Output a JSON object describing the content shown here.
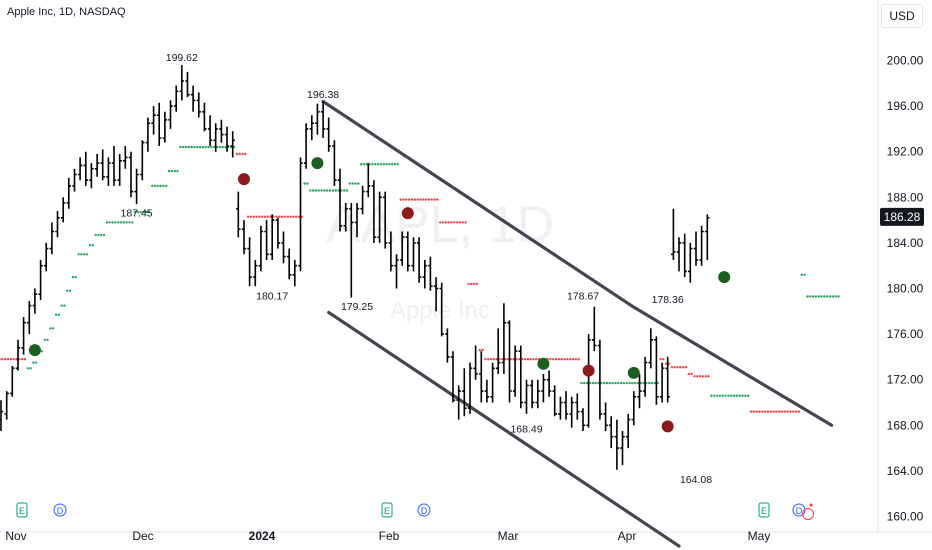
{
  "header": {
    "title": "Apple Inc, 1D, NASDAQ",
    "currency": "USD"
  },
  "watermark": {
    "ticker": "AAPL, 1D",
    "name": "Apple Inc"
  },
  "colors": {
    "bars": "#000000",
    "channel": "#434651",
    "stop_green": "#26a65b",
    "stop_red": "#ef4444",
    "signal_green": "#1b5e20",
    "signal_red": "#8b1a1a",
    "event_green": "#089981",
    "event_blue": "#2962ff"
  },
  "chart_data": {
    "type": "ohlc",
    "title": "Apple Inc, 1D, NASDAQ",
    "ylim": [
      160,
      201
    ],
    "y_ticks": [
      "200.00",
      "196.00",
      "192.00",
      "188.00",
      "184.00",
      "180.00",
      "176.00",
      "172.00",
      "168.00",
      "164.00",
      "160.00"
    ],
    "x_labels": [
      "Nov",
      "Dec",
      "2024",
      "Feb",
      "Mar",
      "Apr",
      "May"
    ],
    "last_price": "186.28",
    "price_annotations": [
      {
        "text": "199.62"
      },
      {
        "text": "196.38"
      },
      {
        "text": "187.45"
      },
      {
        "text": "180.17"
      },
      {
        "text": "179.25"
      },
      {
        "text": "178.67"
      },
      {
        "text": "178.36"
      },
      {
        "text": "168.49"
      },
      {
        "text": "164.08"
      }
    ],
    "events": [
      "E",
      "D",
      "E",
      "D",
      "E",
      "D"
    ],
    "bars": [
      [
        168.5,
        170.2,
        167.5,
        169.2
      ],
      [
        169.0,
        171.0,
        168.5,
        170.8
      ],
      [
        170.8,
        173.2,
        170.5,
        173.0
      ],
      [
        173.0,
        175.5,
        172.8,
        174.8
      ],
      [
        174.8,
        177.5,
        174.2,
        177.0
      ],
      [
        177.0,
        178.9,
        176.0,
        178.5
      ],
      [
        178.5,
        180.0,
        177.8,
        179.5
      ],
      [
        179.5,
        182.5,
        179.0,
        182.0
      ],
      [
        182.0,
        184.0,
        181.5,
        183.5
      ],
      [
        183.5,
        185.8,
        183.0,
        185.0
      ],
      [
        185.0,
        186.8,
        184.5,
        186.2
      ],
      [
        186.2,
        188.0,
        185.8,
        187.5
      ],
      [
        187.5,
        189.7,
        187.0,
        189.0
      ],
      [
        189.0,
        190.5,
        188.5,
        190.0
      ],
      [
        190.0,
        191.5,
        189.5,
        190.8
      ],
      [
        190.8,
        192.0,
        189.0,
        189.5
      ],
      [
        189.5,
        191.0,
        188.8,
        190.5
      ],
      [
        190.5,
        191.8,
        189.8,
        191.0
      ],
      [
        191.0,
        192.2,
        189.5,
        189.8
      ],
      [
        189.8,
        191.5,
        189.0,
        191.0
      ],
      [
        191.0,
        192.5,
        189.0,
        189.5
      ],
      [
        189.5,
        191.8,
        189.0,
        191.2
      ],
      [
        191.2,
        192.5,
        190.5,
        191.5
      ],
      [
        191.5,
        192.0,
        188.0,
        188.5
      ],
      [
        188.5,
        190.5,
        187.4,
        190.0
      ],
      [
        190.0,
        193.0,
        189.5,
        192.8
      ],
      [
        192.8,
        195.0,
        192.0,
        194.5
      ],
      [
        194.5,
        196.0,
        193.5,
        195.2
      ],
      [
        195.2,
        196.3,
        192.5,
        193.2
      ],
      [
        193.2,
        195.5,
        192.8,
        194.8
      ],
      [
        194.8,
        196.5,
        194.0,
        196.0
      ],
      [
        196.0,
        197.8,
        195.5,
        197.3
      ],
      [
        197.3,
        199.6,
        196.5,
        198.2
      ],
      [
        198.2,
        199.0,
        196.8,
        197.0
      ],
      [
        197.0,
        197.8,
        195.5,
        196.5
      ],
      [
        196.5,
        197.2,
        195.0,
        195.5
      ],
      [
        195.5,
        196.3,
        193.8,
        194.0
      ],
      [
        194.0,
        195.2,
        192.5,
        193.0
      ],
      [
        193.0,
        194.5,
        192.0,
        194.0
      ],
      [
        194.0,
        194.8,
        192.8,
        193.5
      ],
      [
        193.5,
        194.2,
        192.0,
        192.5
      ],
      [
        192.5,
        193.8,
        191.5,
        193.0
      ],
      [
        187.0,
        188.5,
        184.5,
        185.2
      ],
      [
        185.2,
        186.0,
        183.0,
        183.5
      ],
      [
        183.5,
        184.5,
        180.2,
        181.0
      ],
      [
        181.0,
        182.5,
        180.2,
        182.0
      ],
      [
        182.0,
        185.5,
        181.5,
        185.0
      ],
      [
        185.0,
        186.0,
        182.5,
        183.0
      ],
      [
        183.0,
        186.5,
        182.5,
        186.0
      ],
      [
        186.0,
        186.2,
        183.5,
        184.0
      ],
      [
        184.0,
        185.0,
        182.2,
        182.8
      ],
      [
        182.8,
        183.5,
        180.8,
        181.2
      ],
      [
        181.2,
        182.5,
        180.2,
        182.0
      ],
      [
        182.0,
        191.5,
        181.5,
        191.0
      ],
      [
        191.0,
        194.5,
        190.5,
        194.0
      ],
      [
        194.0,
        195.2,
        193.0,
        194.5
      ],
      [
        194.5,
        196.2,
        193.5,
        195.5
      ],
      [
        195.5,
        196.4,
        193.2,
        194.0
      ],
      [
        194.0,
        195.0,
        192.0,
        192.5
      ],
      [
        192.5,
        193.0,
        189.0,
        189.5
      ],
      [
        189.5,
        190.5,
        185.0,
        185.5
      ],
      [
        185.5,
        187.5,
        185.0,
        187.0
      ],
      [
        187.0,
        187.5,
        179.2,
        185.8
      ],
      [
        185.8,
        187.5,
        184.5,
        187.0
      ],
      [
        187.0,
        189.0,
        186.5,
        188.5
      ],
      [
        188.5,
        191.0,
        188.0,
        189.0
      ],
      [
        189.0,
        189.5,
        184.0,
        184.5
      ],
      [
        184.5,
        188.5,
        184.0,
        188.0
      ],
      [
        188.0,
        188.5,
        183.5,
        184.0
      ],
      [
        184.0,
        185.0,
        181.5,
        182.0
      ],
      [
        182.0,
        183.0,
        180.0,
        182.5
      ],
      [
        182.5,
        185.0,
        182.0,
        184.5
      ],
      [
        184.5,
        185.0,
        181.5,
        182.0
      ],
      [
        182.0,
        184.5,
        181.5,
        184.0
      ],
      [
        184.0,
        184.5,
        180.5,
        181.0
      ],
      [
        181.0,
        182.5,
        180.0,
        182.0
      ],
      [
        182.0,
        182.8,
        179.8,
        180.2
      ],
      [
        180.2,
        181.0,
        178.0,
        180.0
      ],
      [
        180.0,
        180.5,
        175.8,
        176.0
      ],
      [
        176.0,
        176.5,
        173.5,
        174.0
      ],
      [
        174.0,
        174.5,
        170.0,
        170.2
      ],
      [
        170.2,
        171.5,
        168.5,
        171.0
      ],
      [
        171.0,
        173.0,
        168.8,
        169.5
      ],
      [
        169.5,
        173.5,
        169.0,
        173.0
      ],
      [
        173.0,
        175.0,
        172.0,
        172.5
      ],
      [
        172.5,
        174.5,
        170.0,
        171.0
      ],
      [
        171.0,
        172.0,
        170.0,
        170.5
      ],
      [
        170.5,
        173.5,
        170.0,
        173.0
      ],
      [
        173.0,
        176.5,
        172.5,
        173.5
      ],
      [
        173.5,
        178.7,
        172.5,
        177.0
      ],
      [
        177.0,
        177.2,
        170.0,
        171.0
      ],
      [
        171.0,
        175.0,
        170.5,
        174.5
      ],
      [
        174.5,
        175.0,
        169.5,
        170.0
      ],
      [
        170.0,
        172.0,
        169.0,
        171.5
      ],
      [
        171.5,
        172.0,
        169.5,
        170.0
      ],
      [
        170.0,
        172.0,
        169.5,
        171.0
      ],
      [
        171.0,
        172.5,
        170.0,
        172.0
      ],
      [
        172.0,
        172.8,
        170.5,
        171.0
      ],
      [
        171.0,
        171.5,
        168.8,
        169.0
      ],
      [
        169.0,
        170.5,
        168.5,
        170.0
      ],
      [
        170.0,
        171.0,
        168.5,
        169.0
      ],
      [
        169.0,
        170.5,
        167.8,
        170.0
      ],
      [
        170.0,
        170.8,
        168.5,
        169.2
      ],
      [
        169.2,
        169.5,
        167.5,
        168.0
      ],
      [
        168.0,
        176.0,
        167.8,
        175.5
      ],
      [
        175.5,
        178.4,
        174.5,
        175.0
      ],
      [
        175.0,
        175.5,
        168.5,
        169.0
      ],
      [
        169.0,
        170.0,
        167.5,
        168.0
      ],
      [
        168.0,
        168.8,
        166.0,
        167.0
      ],
      [
        167.0,
        168.5,
        164.1,
        166.0
      ],
      [
        166.0,
        167.5,
        164.5,
        167.0
      ],
      [
        167.0,
        169.0,
        166.0,
        168.5
      ],
      [
        168.5,
        171.0,
        168.0,
        170.5
      ],
      [
        170.5,
        172.5,
        169.5,
        171.0
      ],
      [
        171.0,
        174.0,
        170.5,
        173.5
      ],
      [
        173.5,
        176.5,
        173.0,
        175.5
      ],
      [
        175.5,
        175.8,
        169.8,
        170.5
      ],
      [
        170.5,
        173.5,
        170.0,
        173.0
      ],
      [
        173.0,
        174.0,
        170.0,
        170.5
      ],
      [
        183.0,
        187.0,
        182.5,
        183.2
      ],
      [
        183.2,
        184.5,
        181.5,
        184.0
      ],
      [
        184.0,
        184.8,
        181.0,
        181.5
      ],
      [
        181.5,
        184.0,
        180.5,
        183.5
      ],
      [
        183.5,
        185.0,
        182.0,
        182.5
      ],
      [
        182.5,
        185.5,
        182.0,
        185.0
      ],
      [
        185.0,
        186.5,
        182.5,
        186.2
      ]
    ],
    "stop_levels": [
      [
        173.8,
        "r"
      ],
      [
        173.8,
        "r"
      ],
      [
        173.8,
        "r"
      ],
      [
        173.8,
        "r"
      ],
      [
        173.8,
        "r"
      ],
      [
        173.0,
        "g"
      ],
      [
        173.5,
        "g"
      ],
      [
        174.5,
        "g"
      ],
      [
        175.5,
        "g"
      ],
      [
        176.5,
        "g"
      ],
      [
        177.7,
        "g"
      ],
      [
        178.5,
        "g"
      ],
      [
        179.8,
        "g"
      ],
      [
        181.0,
        "g"
      ],
      [
        183.0,
        "g"
      ],
      [
        183.0,
        "g"
      ],
      [
        183.8,
        "g"
      ],
      [
        184.7,
        "g"
      ],
      [
        184.7,
        "g"
      ],
      [
        185.8,
        "g"
      ],
      [
        185.8,
        "g"
      ],
      [
        185.8,
        "g"
      ],
      [
        185.8,
        "g"
      ],
      [
        185.8,
        "g"
      ],
      [
        186.7,
        "g"
      ],
      [
        186.7,
        "g"
      ],
      [
        186.7,
        "g"
      ],
      [
        189.0,
        "g"
      ],
      [
        189.0,
        "g"
      ],
      [
        189.0,
        "g"
      ],
      [
        190.3,
        "g"
      ],
      [
        190.3,
        "g"
      ],
      [
        192.4,
        "g"
      ],
      [
        192.4,
        "g"
      ],
      [
        192.4,
        "g"
      ],
      [
        192.4,
        "g"
      ],
      [
        192.4,
        "g"
      ],
      [
        192.4,
        "g"
      ],
      [
        192.4,
        "g"
      ],
      [
        192.4,
        "g"
      ],
      [
        192.4,
        "g"
      ],
      [
        192.4,
        "g"
      ],
      [
        191.8,
        "r"
      ],
      [
        191.8,
        "r"
      ],
      [
        186.3,
        "r"
      ],
      [
        186.3,
        "r"
      ],
      [
        186.3,
        "r"
      ],
      [
        186.3,
        "r"
      ],
      [
        186.3,
        "r"
      ],
      [
        186.3,
        "r"
      ],
      [
        186.3,
        "r"
      ],
      [
        186.3,
        "r"
      ],
      [
        186.3,
        "r"
      ],
      [
        186.3,
        "r"
      ],
      [
        189.2,
        "g"
      ],
      [
        188.6,
        "g"
      ],
      [
        188.6,
        "g"
      ],
      [
        188.6,
        "g"
      ],
      [
        188.6,
        "g"
      ],
      [
        188.6,
        "g"
      ],
      [
        188.6,
        "g"
      ],
      [
        188.6,
        "g"
      ],
      [
        189.2,
        "g"
      ],
      [
        189.2,
        "g"
      ],
      [
        190.9,
        "g"
      ],
      [
        190.9,
        "g"
      ],
      [
        190.9,
        "g"
      ],
      [
        190.9,
        "g"
      ],
      [
        190.9,
        "g"
      ],
      [
        190.9,
        "g"
      ],
      [
        190.9,
        "g"
      ],
      [
        187.8,
        "r"
      ],
      [
        187.8,
        "r"
      ],
      [
        187.8,
        "r"
      ],
      [
        187.8,
        "r"
      ],
      [
        187.8,
        "r"
      ],
      [
        187.8,
        "r"
      ],
      [
        187.8,
        "r"
      ],
      [
        185.8,
        "r"
      ],
      [
        185.8,
        "r"
      ],
      [
        185.8,
        "r"
      ],
      [
        185.8,
        "r"
      ],
      [
        185.8,
        "r"
      ],
      [
        180.4,
        "r"
      ],
      [
        180.4,
        "r"
      ],
      [
        174.6,
        "r"
      ],
      [
        173.8,
        "r"
      ],
      [
        173.8,
        "r"
      ],
      [
        173.8,
        "r"
      ],
      [
        173.8,
        "r"
      ],
      [
        173.8,
        "r"
      ],
      [
        173.8,
        "r"
      ],
      [
        173.8,
        "r"
      ],
      [
        173.8,
        "r"
      ],
      [
        173.8,
        "r"
      ],
      [
        173.8,
        "r"
      ],
      [
        173.8,
        "r"
      ],
      [
        173.8,
        "r"
      ],
      [
        173.8,
        "r"
      ],
      [
        173.8,
        "r"
      ],
      [
        173.8,
        "r"
      ],
      [
        173.8,
        "r"
      ],
      [
        173.8,
        "r"
      ],
      [
        171.7,
        "g"
      ],
      [
        171.7,
        "g"
      ],
      [
        171.7,
        "g"
      ],
      [
        171.7,
        "g"
      ],
      [
        171.7,
        "g"
      ],
      [
        171.7,
        "g"
      ],
      [
        171.7,
        "g"
      ],
      [
        171.7,
        "g"
      ],
      [
        171.7,
        "g"
      ],
      [
        171.7,
        "g"
      ],
      [
        171.7,
        "g"
      ],
      [
        171.7,
        "g"
      ],
      [
        171.7,
        "g"
      ],
      [
        171.7,
        "g"
      ],
      [
        173.8,
        "r"
      ],
      [
        173.4,
        "r"
      ],
      [
        173.1,
        "r"
      ],
      [
        173.1,
        "r"
      ],
      [
        173.1,
        "r"
      ],
      [
        172.5,
        "r"
      ],
      [
        172.3,
        "r"
      ],
      [
        172.3,
        "r"
      ],
      [
        172.3,
        "r"
      ],
      [
        170.6,
        "g"
      ],
      [
        170.6,
        "g"
      ],
      [
        170.6,
        "g"
      ],
      [
        170.6,
        "g"
      ],
      [
        170.6,
        "g"
      ],
      [
        170.6,
        "g"
      ],
      [
        170.6,
        "g"
      ],
      [
        169.2,
        "r"
      ],
      [
        169.2,
        "r"
      ],
      [
        169.2,
        "r"
      ],
      [
        169.2,
        "r"
      ],
      [
        169.2,
        "r"
      ],
      [
        169.2,
        "r"
      ],
      [
        169.2,
        "r"
      ],
      [
        169.2,
        "r"
      ],
      [
        169.2,
        "r"
      ],
      [
        181.2,
        "g"
      ],
      [
        179.3,
        "g"
      ],
      [
        179.3,
        "g"
      ],
      [
        179.3,
        "g"
      ],
      [
        179.3,
        "g"
      ],
      [
        179.3,
        "g"
      ],
      [
        179.3,
        "g"
      ]
    ],
    "signals": [
      {
        "bar": 6,
        "price": 174.6,
        "color": "g"
      },
      {
        "bar": 43,
        "price": 189.6,
        "color": "r"
      },
      {
        "bar": 56,
        "price": 191.0,
        "color": "g"
      },
      {
        "bar": 72,
        "price": 186.6,
        "color": "r"
      },
      {
        "bar": 96,
        "price": 173.4,
        "color": "g"
      },
      {
        "bar": 104,
        "price": 172.8,
        "color": "r"
      },
      {
        "bar": 112,
        "price": 172.6,
        "color": "g"
      },
      {
        "bar": 118,
        "price": 167.9,
        "color": "r"
      },
      {
        "bar": 128,
        "price": 181.0,
        "color": "g"
      }
    ],
    "channel": {
      "upper": [
        [
          57,
          196.4
        ],
        [
          112,
          178.36
        ],
        [
          147,
          168.0
        ]
      ],
      "lower": [
        [
          58,
          177.9
        ],
        [
          120,
          157.4
        ]
      ]
    }
  }
}
